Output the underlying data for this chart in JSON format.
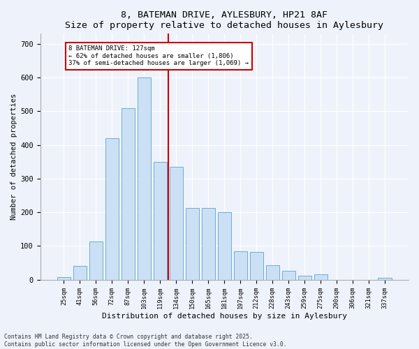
{
  "title": "8, BATEMAN DRIVE, AYLESBURY, HP21 8AF",
  "subtitle": "Size of property relative to detached houses in Aylesbury",
  "xlabel": "Distribution of detached houses by size in Aylesbury",
  "ylabel": "Number of detached properties",
  "categories": [
    "25sqm",
    "41sqm",
    "56sqm",
    "72sqm",
    "87sqm",
    "103sqm",
    "119sqm",
    "134sqm",
    "150sqm",
    "165sqm",
    "181sqm",
    "197sqm",
    "212sqm",
    "228sqm",
    "243sqm",
    "259sqm",
    "275sqm",
    "290sqm",
    "306sqm",
    "321sqm",
    "337sqm"
  ],
  "values": [
    8,
    40,
    113,
    420,
    510,
    600,
    350,
    335,
    213,
    213,
    200,
    85,
    83,
    42,
    27,
    12,
    15,
    0,
    0,
    0,
    5
  ],
  "bar_color": "#cce0f5",
  "bar_edge_color": "#6aaed6",
  "vline_color": "#cc0000",
  "annotation_text": "8 BATEMAN DRIVE: 127sqm\n← 62% of detached houses are smaller (1,806)\n37% of semi-detached houses are larger (1,069) →",
  "annotation_box_color": "#ffffff",
  "annotation_box_edge": "#cc0000",
  "footer_text": "Contains HM Land Registry data © Crown copyright and database right 2025.\nContains public sector information licensed under the Open Government Licence v3.0.",
  "background_color": "#eef2fb",
  "ylim": [
    0,
    730
  ],
  "yticks": [
    0,
    100,
    200,
    300,
    400,
    500,
    600,
    700
  ]
}
